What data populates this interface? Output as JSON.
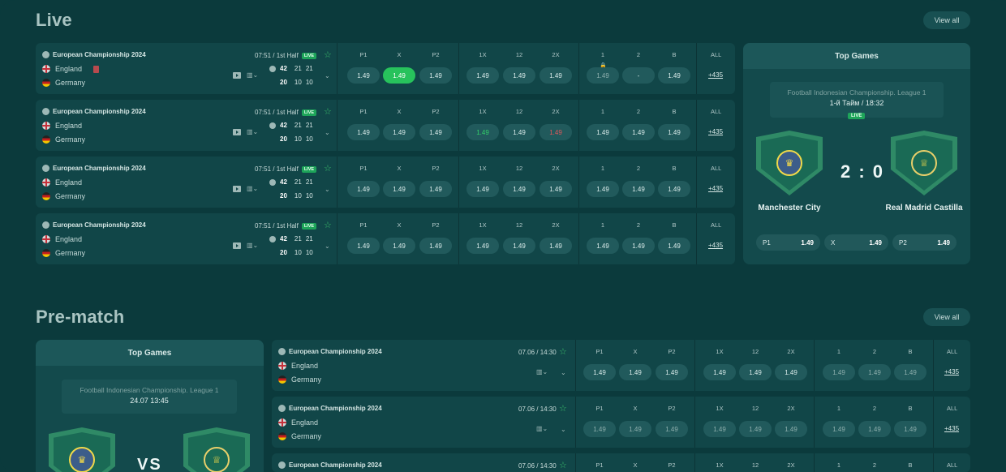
{
  "live": {
    "title": "Live",
    "view_all": "View all",
    "matches": [
      {
        "league": "European Championship 2024",
        "team1": "England",
        "team2": "Germany",
        "time": "07:51 / 1st Half",
        "live": "LIVE",
        "s1": "42",
        "s1a": "21",
        "s1b": "21",
        "s2": "20",
        "s2a": "10",
        "s2b": "10",
        "h1": [
          "P1",
          "X",
          "P2"
        ],
        "o1": [
          "1.49",
          "1.49",
          "1.49"
        ],
        "h2": [
          "1X",
          "12",
          "2X"
        ],
        "o2": [
          "1.49",
          "1.49",
          "1.49"
        ],
        "h3": [
          "1",
          "2",
          "B"
        ],
        "o3": [
          "1.49",
          "-",
          "1.49"
        ],
        "all_label": "ALL",
        "all": "+435"
      },
      {
        "league": "European Championship 2024",
        "team1": "England",
        "team2": "Germany",
        "time": "07:51 / 1st Half",
        "live": "LIVE",
        "s1": "42",
        "s1a": "21",
        "s1b": "21",
        "s2": "20",
        "s2a": "10",
        "s2b": "10",
        "h1": [
          "P1",
          "X",
          "P2"
        ],
        "o1": [
          "1.49",
          "1.49",
          "1.49"
        ],
        "h2": [
          "1X",
          "12",
          "2X"
        ],
        "o2": [
          "1.49",
          "1.49",
          "1.49"
        ],
        "h3": [
          "1",
          "2",
          "B"
        ],
        "o3": [
          "1.49",
          "1.49",
          "1.49"
        ],
        "all_label": "ALL",
        "all": "+435"
      },
      {
        "league": "European Championship 2024",
        "team1": "England",
        "team2": "Germany",
        "time": "07:51 / 1st Half",
        "live": "LIVE",
        "s1": "42",
        "s1a": "21",
        "s1b": "21",
        "s2": "20",
        "s2a": "10",
        "s2b": "10",
        "h1": [
          "P1",
          "X",
          "P2"
        ],
        "o1": [
          "1.49",
          "1.49",
          "1.49"
        ],
        "h2": [
          "1X",
          "12",
          "2X"
        ],
        "o2": [
          "1.49",
          "1.49",
          "1.49"
        ],
        "h3": [
          "1",
          "2",
          "B"
        ],
        "o3": [
          "1.49",
          "1.49",
          "1.49"
        ],
        "all_label": "ALL",
        "all": "+435"
      },
      {
        "league": "European Championship 2024",
        "team1": "England",
        "team2": "Germany",
        "time": "07:51 / 1st Half",
        "live": "LIVE",
        "s1": "42",
        "s1a": "21",
        "s1b": "21",
        "s2": "20",
        "s2a": "10",
        "s2b": "10",
        "h1": [
          "P1",
          "X",
          "P2"
        ],
        "o1": [
          "1.49",
          "1.49",
          "1.49"
        ],
        "h2": [
          "1X",
          "12",
          "2X"
        ],
        "o2": [
          "1.49",
          "1.49",
          "1.49"
        ],
        "h3": [
          "1",
          "2",
          "B"
        ],
        "o3": [
          "1.49",
          "1.49",
          "1.49"
        ],
        "all_label": "ALL",
        "all": "+435"
      }
    ],
    "top_games": {
      "title": "Top Games",
      "league": "Football Indonesian Championship. League 1",
      "status": "1-й Тайм / 18:32",
      "live": "LIVE",
      "score": "2 : 0",
      "team1": "Manchester City",
      "team2": "Real Madrid Castilla",
      "odds": [
        {
          "label": "P1",
          "value": "1.49"
        },
        {
          "label": "X",
          "value": "1.49"
        },
        {
          "label": "P2",
          "value": "1.49"
        }
      ]
    }
  },
  "prematch": {
    "title": "Pre-match",
    "view_all": "View all",
    "top_games": {
      "title": "Top Games",
      "league": "Football Indonesian Championship. League 1",
      "date": "24.07 13:45",
      "vs": "VS"
    },
    "matches": [
      {
        "league": "European Championship 2024",
        "team1": "England",
        "team2": "Germany",
        "time": "07.06 / 14:30",
        "h1": [
          "P1",
          "X",
          "P2"
        ],
        "o1": [
          "1.49",
          "1.49",
          "1.49"
        ],
        "h2": [
          "1X",
          "12",
          "2X"
        ],
        "o2": [
          "1.49",
          "1.49",
          "1.49"
        ],
        "h3": [
          "1",
          "2",
          "B"
        ],
        "o3": [
          "1.49",
          "1.49",
          "1.49"
        ],
        "all_label": "ALL",
        "all": "+435"
      },
      {
        "league": "European Championship 2024",
        "team1": "England",
        "team2": "Germany",
        "time": "07.06 / 14:30",
        "h1": [
          "P1",
          "X",
          "P2"
        ],
        "o1": [
          "1.49",
          "1.49",
          "1.49"
        ],
        "h2": [
          "1X",
          "12",
          "2X"
        ],
        "o2": [
          "1.49",
          "1.49",
          "1.49"
        ],
        "h3": [
          "1",
          "2",
          "B"
        ],
        "o3": [
          "1.49",
          "1.49",
          "1.49"
        ],
        "all_label": "ALL",
        "all": "+435"
      },
      {
        "league": "European Championship 2024",
        "time": "07.06 / 14:30",
        "h1": [
          "P1",
          "X",
          "P2"
        ],
        "h2": [
          "1X",
          "12",
          "2X"
        ],
        "h3": [
          "1",
          "2",
          "B"
        ],
        "all_label": "ALL"
      }
    ]
  },
  "colors": {
    "bg": "#0b3a3c",
    "card": "#114648",
    "odd": "#215a5c",
    "selected": "#27c25c",
    "accent_live": "#1ea55a"
  }
}
